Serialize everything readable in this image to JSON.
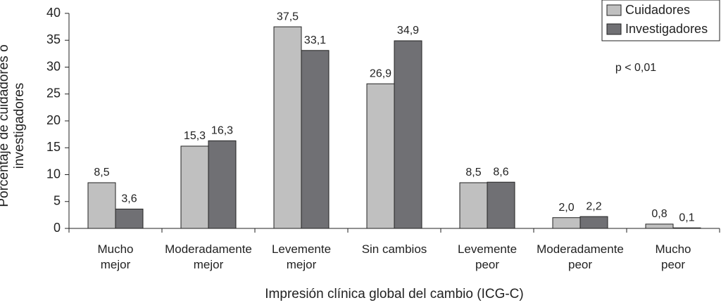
{
  "chart_data": {
    "type": "bar",
    "x_label": "Impresión clínica global del cambio (ICG-C)",
    "y_label": "Porcentaje de cuidadores o\ninvestigadores",
    "annotation": "p < 0,01",
    "categories": [
      "Mucho\nmejor",
      "Moderadamente\nmejor",
      "Levemente\nmejor",
      "Sin cambios",
      "Levemente\npeor",
      "Moderadamente\npeor",
      "Mucho\npeor"
    ],
    "series": [
      {
        "name": "Cuidadores",
        "color": "#c0c0c0",
        "values": [
          8.5,
          15.3,
          37.5,
          26.9,
          8.5,
          2.0,
          0.8
        ],
        "value_labels": [
          "8,5",
          "15,3",
          "37,5",
          "26,9",
          "8,5",
          "2,0",
          "0,8"
        ]
      },
      {
        "name": "Investigadores",
        "color": "#707074",
        "values": [
          3.6,
          16.3,
          33.1,
          34.9,
          8.6,
          2.2,
          0.1
        ],
        "value_labels": [
          "3,6",
          "16,3",
          "33,1",
          "34,9",
          "8,6",
          "2,2",
          "0,1"
        ]
      }
    ],
    "ylim": [
      0,
      40
    ],
    "yticks": [
      0,
      5,
      10,
      15,
      20,
      25,
      30,
      35,
      40
    ],
    "legend": "top-right"
  }
}
